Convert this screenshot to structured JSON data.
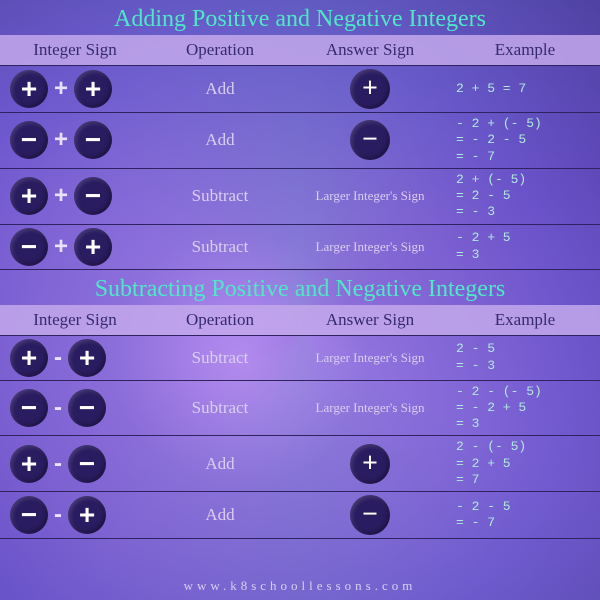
{
  "colors": {
    "title": "#4ee8c8",
    "header_bg": "rgba(195,168,235,0.85)",
    "header_text": "#362a6e",
    "row_text": "#d8cff2",
    "example_text": "#b0e8e0",
    "chip_bg": "#2a1c60",
    "chip_fg": "#ffffff",
    "border": "#2e2260"
  },
  "typography": {
    "title_family": "Times New Roman",
    "title_size_pt": 18,
    "header_size_pt": 13,
    "body_size_pt": 13,
    "example_family": "Courier New",
    "example_size_pt": 10
  },
  "columns": [
    "Integer Sign",
    "Operation",
    "Answer Sign",
    "Example"
  ],
  "sections": [
    {
      "title": "Adding Positive and Negative Integers",
      "connector": "+",
      "rows": [
        {
          "left": "plus",
          "right": "plus",
          "operation": "Add",
          "answer_sign": "plus",
          "answer_text": "",
          "example": "2 + 5 = 7"
        },
        {
          "left": "minus",
          "right": "minus",
          "operation": "Add",
          "answer_sign": "minus",
          "answer_text": "",
          "example": "- 2 + (- 5)\n= - 2 - 5\n= - 7"
        },
        {
          "left": "plus",
          "right": "minus",
          "operation": "Subtract",
          "answer_sign": "",
          "answer_text": "Larger Integer's Sign",
          "example": "2 + (- 5)\n= 2 - 5\n= - 3"
        },
        {
          "left": "minus",
          "right": "plus",
          "operation": "Subtract",
          "answer_sign": "",
          "answer_text": "Larger Integer's Sign",
          "example": "- 2 + 5\n= 3"
        }
      ]
    },
    {
      "title": "Subtracting Positive and Negative Integers",
      "connector": "-",
      "rows": [
        {
          "left": "plus",
          "right": "plus",
          "operation": "Subtract",
          "answer_sign": "",
          "answer_text": "Larger Integer's Sign",
          "example": "2 - 5\n= - 3"
        },
        {
          "left": "minus",
          "right": "minus",
          "operation": "Subtract",
          "answer_sign": "",
          "answer_text": "Larger Integer's Sign",
          "example": "- 2 - (- 5)\n= - 2 + 5\n= 3"
        },
        {
          "left": "plus",
          "right": "minus",
          "operation": "Add",
          "answer_sign": "plus",
          "answer_text": "",
          "example": "2 - (- 5)\n= 2 + 5\n= 7"
        },
        {
          "left": "minus",
          "right": "plus",
          "operation": "Add",
          "answer_sign": "minus",
          "answer_text": "",
          "example": "- 2 - 5\n= - 7"
        }
      ]
    }
  ],
  "footer": "www.k8schoollessons.com"
}
